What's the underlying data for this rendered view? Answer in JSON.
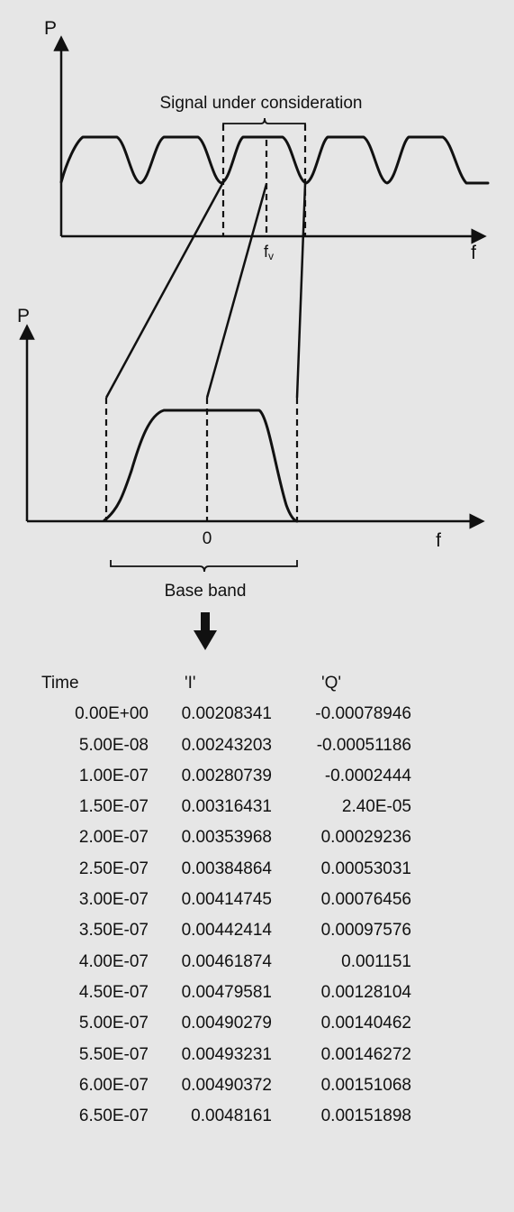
{
  "top_plot": {
    "y_axis_label": "P",
    "x_axis_label": "f",
    "carrier_label": "f",
    "carrier_subscript": "v",
    "signal_label": "Signal under consideration"
  },
  "baseband_plot": {
    "y_axis_label": "P",
    "x_axis_label": "f",
    "zero_label": "0",
    "band_label": "Base band"
  },
  "iq_table": {
    "headers": [
      "Time",
      "'I'",
      "'Q'"
    ],
    "rows": [
      [
        "0.00E+00",
        "0.00208341",
        "-0.00078946"
      ],
      [
        "5.00E-08",
        "0.00243203",
        "-0.00051186"
      ],
      [
        "1.00E-07",
        "0.00280739",
        "-0.0002444"
      ],
      [
        "1.50E-07",
        "0.00316431",
        "2.40E-05"
      ],
      [
        "2.00E-07",
        "0.00353968",
        "0.00029236"
      ],
      [
        "2.50E-07",
        "0.00384864",
        "0.00053031"
      ],
      [
        "3.00E-07",
        "0.00414745",
        "0.00076456"
      ],
      [
        "3.50E-07",
        "0.00442414",
        "0.00097576"
      ],
      [
        "4.00E-07",
        "0.00461874",
        "0.001151"
      ],
      [
        "4.50E-07",
        "0.00479581",
        "0.00128104"
      ],
      [
        "5.00E-07",
        "0.00490279",
        "0.00140462"
      ],
      [
        "5.50E-07",
        "0.00493231",
        "0.00146272"
      ],
      [
        "6.00E-07",
        "0.00490372",
        "0.00151068"
      ],
      [
        "6.50E-07",
        "0.0048161",
        "0.00151898"
      ]
    ]
  },
  "colors": {
    "background": "#e6e6e6",
    "ink": "#111111"
  }
}
